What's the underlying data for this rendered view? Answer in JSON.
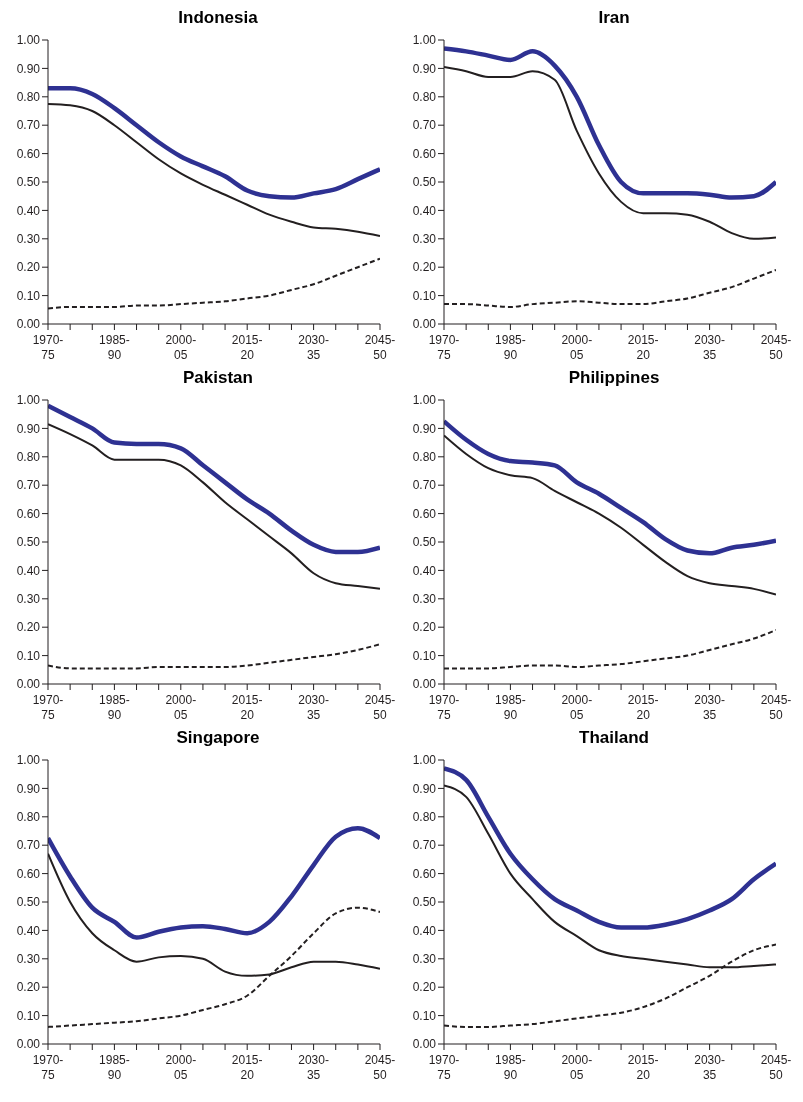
{
  "chart_data": [
    {
      "type": "line",
      "title": "Indonesia",
      "categories": [
        "1970-75",
        null,
        null,
        "1985-90",
        null,
        null,
        "2000-05",
        null,
        null,
        "2015-20",
        null,
        null,
        "2030-35",
        null,
        null,
        "2045-50"
      ],
      "ylim": [
        0,
        1
      ],
      "yticks": [
        {
          "value": 0,
          "label": "0.00"
        },
        {
          "value": 0.1,
          "label": "0.10"
        },
        {
          "value": 0.2,
          "label": "0.20"
        },
        {
          "value": 0.3,
          "label": "0.30"
        },
        {
          "value": 0.4,
          "label": "0.40"
        },
        {
          "value": 0.5,
          "label": "0.50"
        },
        {
          "value": 0.6,
          "label": "0.60"
        },
        {
          "value": 0.7,
          "label": "0.70"
        },
        {
          "value": 0.8,
          "label": "0.80"
        },
        {
          "value": 0.9,
          "label": "0.90"
        },
        {
          "value": 1,
          "label": "1.00"
        }
      ],
      "grid": false,
      "legend": false,
      "marker": "none",
      "series": [
        {
          "color": "#2e3192",
          "line_style": "solid",
          "values": [
            0.83,
            0.83,
            0.81,
            0.76,
            0.7,
            0.64,
            0.59,
            0.555,
            0.52,
            0.47,
            0.45,
            0.445,
            0.46,
            0.475,
            0.51,
            0.545
          ]
        },
        {
          "color": "#231f20",
          "line_style": "solid",
          "values": [
            0.775,
            0.77,
            0.75,
            0.7,
            0.64,
            0.58,
            0.53,
            0.49,
            0.455,
            0.42,
            0.385,
            0.36,
            0.34,
            0.335,
            0.325,
            0.31
          ]
        },
        {
          "color": "#231f20",
          "line_style": "dashed",
          "values": [
            0.055,
            0.06,
            0.06,
            0.06,
            0.065,
            0.065,
            0.07,
            0.075,
            0.08,
            0.09,
            0.1,
            0.12,
            0.14,
            0.17,
            0.2,
            0.23
          ]
        }
      ]
    },
    {
      "type": "line",
      "title": "Iran",
      "categories": [
        "1970-75",
        null,
        null,
        "1985-90",
        null,
        null,
        "2000-05",
        null,
        null,
        "2015-20",
        null,
        null,
        "2030-35",
        null,
        null,
        "2045-50"
      ],
      "ylim": [
        0,
        1
      ],
      "yticks": [
        {
          "value": 0,
          "label": "0.00"
        },
        {
          "value": 0.1,
          "label": "0.10"
        },
        {
          "value": 0.2,
          "label": "0.20"
        },
        {
          "value": 0.3,
          "label": "0.30"
        },
        {
          "value": 0.4,
          "label": "0.40"
        },
        {
          "value": 0.5,
          "label": "0.50"
        },
        {
          "value": 0.6,
          "label": "0.60"
        },
        {
          "value": 0.7,
          "label": "0.70"
        },
        {
          "value": 0.8,
          "label": "0.80"
        },
        {
          "value": 0.9,
          "label": "0.90"
        },
        {
          "value": 1,
          "label": "1.00"
        }
      ],
      "grid": false,
      "legend": false,
      "marker": "none",
      "series": [
        {
          "color": "#2e3192",
          "line_style": "solid",
          "values": [
            0.97,
            0.96,
            0.945,
            0.93,
            0.96,
            0.91,
            0.8,
            0.63,
            0.5,
            0.46,
            0.46,
            0.46,
            0.455,
            0.445,
            0.45,
            0.5
          ]
        },
        {
          "color": "#231f20",
          "line_style": "solid",
          "values": [
            0.905,
            0.89,
            0.87,
            0.87,
            0.89,
            0.86,
            0.68,
            0.53,
            0.43,
            0.39,
            0.39,
            0.385,
            0.36,
            0.32,
            0.3,
            0.305
          ]
        },
        {
          "color": "#231f20",
          "line_style": "dashed",
          "values": [
            0.07,
            0.07,
            0.065,
            0.06,
            0.07,
            0.075,
            0.08,
            0.075,
            0.07,
            0.07,
            0.08,
            0.09,
            0.11,
            0.13,
            0.16,
            0.19
          ]
        }
      ]
    },
    {
      "type": "line",
      "title": "Pakistan",
      "categories": [
        "1970-75",
        null,
        null,
        "1985-90",
        null,
        null,
        "2000-05",
        null,
        null,
        "2015-20",
        null,
        null,
        "2030-35",
        null,
        null,
        "2045-50"
      ],
      "ylim": [
        0,
        1
      ],
      "yticks": [
        {
          "value": 0,
          "label": "0.00"
        },
        {
          "value": 0.1,
          "label": "0.10"
        },
        {
          "value": 0.2,
          "label": "0.20"
        },
        {
          "value": 0.3,
          "label": "0.30"
        },
        {
          "value": 0.4,
          "label": "0.40"
        },
        {
          "value": 0.5,
          "label": "0.50"
        },
        {
          "value": 0.6,
          "label": "0.60"
        },
        {
          "value": 0.7,
          "label": "0.70"
        },
        {
          "value": 0.8,
          "label": "0.80"
        },
        {
          "value": 0.9,
          "label": "0.90"
        },
        {
          "value": 1,
          "label": "1.00"
        }
      ],
      "grid": false,
      "legend": false,
      "marker": "none",
      "series": [
        {
          "color": "#2e3192",
          "line_style": "solid",
          "values": [
            0.98,
            0.94,
            0.9,
            0.85,
            0.845,
            0.845,
            0.83,
            0.77,
            0.71,
            0.65,
            0.6,
            0.54,
            0.49,
            0.465,
            0.465,
            0.48
          ]
        },
        {
          "color": "#231f20",
          "line_style": "solid",
          "values": [
            0.915,
            0.88,
            0.84,
            0.79,
            0.79,
            0.79,
            0.77,
            0.71,
            0.64,
            0.58,
            0.52,
            0.46,
            0.39,
            0.355,
            0.345,
            0.335
          ]
        },
        {
          "color": "#231f20",
          "line_style": "dashed",
          "values": [
            0.065,
            0.055,
            0.055,
            0.055,
            0.055,
            0.06,
            0.06,
            0.06,
            0.06,
            0.065,
            0.075,
            0.085,
            0.095,
            0.105,
            0.12,
            0.14
          ]
        }
      ]
    },
    {
      "type": "line",
      "title": "Philippines",
      "categories": [
        "1970-75",
        null,
        null,
        "1985-90",
        null,
        null,
        "2000-05",
        null,
        null,
        "2015-20",
        null,
        null,
        "2030-35",
        null,
        null,
        "2045-50"
      ],
      "ylim": [
        0,
        1
      ],
      "yticks": [
        {
          "value": 0,
          "label": "0.00"
        },
        {
          "value": 0.1,
          "label": "0.10"
        },
        {
          "value": 0.2,
          "label": "0.20"
        },
        {
          "value": 0.3,
          "label": "0.30"
        },
        {
          "value": 0.4,
          "label": "0.40"
        },
        {
          "value": 0.5,
          "label": "0.50"
        },
        {
          "value": 0.6,
          "label": "0.60"
        },
        {
          "value": 0.7,
          "label": "0.70"
        },
        {
          "value": 0.8,
          "label": "0.80"
        },
        {
          "value": 0.9,
          "label": "0.90"
        },
        {
          "value": 1,
          "label": "1.00"
        }
      ],
      "grid": false,
      "legend": false,
      "marker": "none",
      "series": [
        {
          "color": "#2e3192",
          "line_style": "solid",
          "values": [
            0.925,
            0.86,
            0.81,
            0.785,
            0.78,
            0.77,
            0.71,
            0.67,
            0.62,
            0.57,
            0.51,
            0.47,
            0.46,
            0.48,
            0.49,
            0.505
          ]
        },
        {
          "color": "#231f20",
          "line_style": "solid",
          "values": [
            0.875,
            0.81,
            0.76,
            0.735,
            0.725,
            0.68,
            0.64,
            0.6,
            0.55,
            0.49,
            0.43,
            0.38,
            0.355,
            0.345,
            0.335,
            0.315
          ]
        },
        {
          "color": "#231f20",
          "line_style": "dashed",
          "values": [
            0.055,
            0.055,
            0.055,
            0.06,
            0.065,
            0.065,
            0.06,
            0.065,
            0.07,
            0.08,
            0.09,
            0.1,
            0.12,
            0.14,
            0.16,
            0.19
          ]
        }
      ]
    },
    {
      "type": "line",
      "title": "Singapore",
      "categories": [
        "1970-75",
        null,
        null,
        "1985-90",
        null,
        null,
        "2000-05",
        null,
        null,
        "2015-20",
        null,
        null,
        "2030-35",
        null,
        null,
        "2045-50"
      ],
      "ylim": [
        0,
        1
      ],
      "yticks": [
        {
          "value": 0,
          "label": "0.00"
        },
        {
          "value": 0.1,
          "label": "0.10"
        },
        {
          "value": 0.2,
          "label": "0.20"
        },
        {
          "value": 0.3,
          "label": "0.30"
        },
        {
          "value": 0.4,
          "label": "0.40"
        },
        {
          "value": 0.5,
          "label": "0.50"
        },
        {
          "value": 0.6,
          "label": "0.60"
        },
        {
          "value": 0.7,
          "label": "0.70"
        },
        {
          "value": 0.8,
          "label": "0.80"
        },
        {
          "value": 0.9,
          "label": "0.90"
        },
        {
          "value": 1,
          "label": "1.00"
        }
      ],
      "grid": false,
      "legend": false,
      "marker": "none",
      "series": [
        {
          "color": "#2e3192",
          "line_style": "solid",
          "values": [
            0.725,
            0.59,
            0.48,
            0.43,
            0.375,
            0.395,
            0.41,
            0.415,
            0.405,
            0.39,
            0.43,
            0.52,
            0.63,
            0.73,
            0.76,
            0.725
          ]
        },
        {
          "color": "#231f20",
          "line_style": "solid",
          "values": [
            0.67,
            0.5,
            0.39,
            0.33,
            0.29,
            0.305,
            0.31,
            0.3,
            0.255,
            0.24,
            0.245,
            0.27,
            0.29,
            0.29,
            0.28,
            0.265
          ]
        },
        {
          "color": "#231f20",
          "line_style": "dashed",
          "values": [
            0.06,
            0.065,
            0.07,
            0.075,
            0.08,
            0.09,
            0.1,
            0.12,
            0.14,
            0.17,
            0.24,
            0.31,
            0.39,
            0.46,
            0.48,
            0.465
          ]
        }
      ]
    },
    {
      "type": "line",
      "title": "Thailand",
      "categories": [
        "1970-75",
        null,
        null,
        "1985-90",
        null,
        null,
        "2000-05",
        null,
        null,
        "2015-20",
        null,
        null,
        "2030-35",
        null,
        null,
        "2045-50"
      ],
      "ylim": [
        0,
        1
      ],
      "yticks": [
        {
          "value": 0,
          "label": "0.00"
        },
        {
          "value": 0.1,
          "label": "0.10"
        },
        {
          "value": 0.2,
          "label": "0.20"
        },
        {
          "value": 0.3,
          "label": "0.30"
        },
        {
          "value": 0.4,
          "label": "0.40"
        },
        {
          "value": 0.5,
          "label": "0.50"
        },
        {
          "value": 0.6,
          "label": "0.60"
        },
        {
          "value": 0.7,
          "label": "0.70"
        },
        {
          "value": 0.8,
          "label": "0.80"
        },
        {
          "value": 0.9,
          "label": "0.90"
        },
        {
          "value": 1,
          "label": "1.00"
        }
      ],
      "grid": false,
      "legend": false,
      "marker": "none",
      "series": [
        {
          "color": "#2e3192",
          "line_style": "solid",
          "values": [
            0.97,
            0.93,
            0.8,
            0.67,
            0.58,
            0.51,
            0.47,
            0.43,
            0.41,
            0.41,
            0.42,
            0.44,
            0.47,
            0.51,
            0.58,
            0.635
          ]
        },
        {
          "color": "#231f20",
          "line_style": "solid",
          "values": [
            0.91,
            0.87,
            0.74,
            0.6,
            0.51,
            0.43,
            0.38,
            0.33,
            0.31,
            0.3,
            0.29,
            0.28,
            0.27,
            0.27,
            0.275,
            0.28
          ]
        },
        {
          "color": "#231f20",
          "line_style": "dashed",
          "values": [
            0.065,
            0.06,
            0.06,
            0.065,
            0.07,
            0.08,
            0.09,
            0.1,
            0.11,
            0.13,
            0.16,
            0.2,
            0.24,
            0.29,
            0.33,
            0.35
          ]
        }
      ]
    }
  ]
}
